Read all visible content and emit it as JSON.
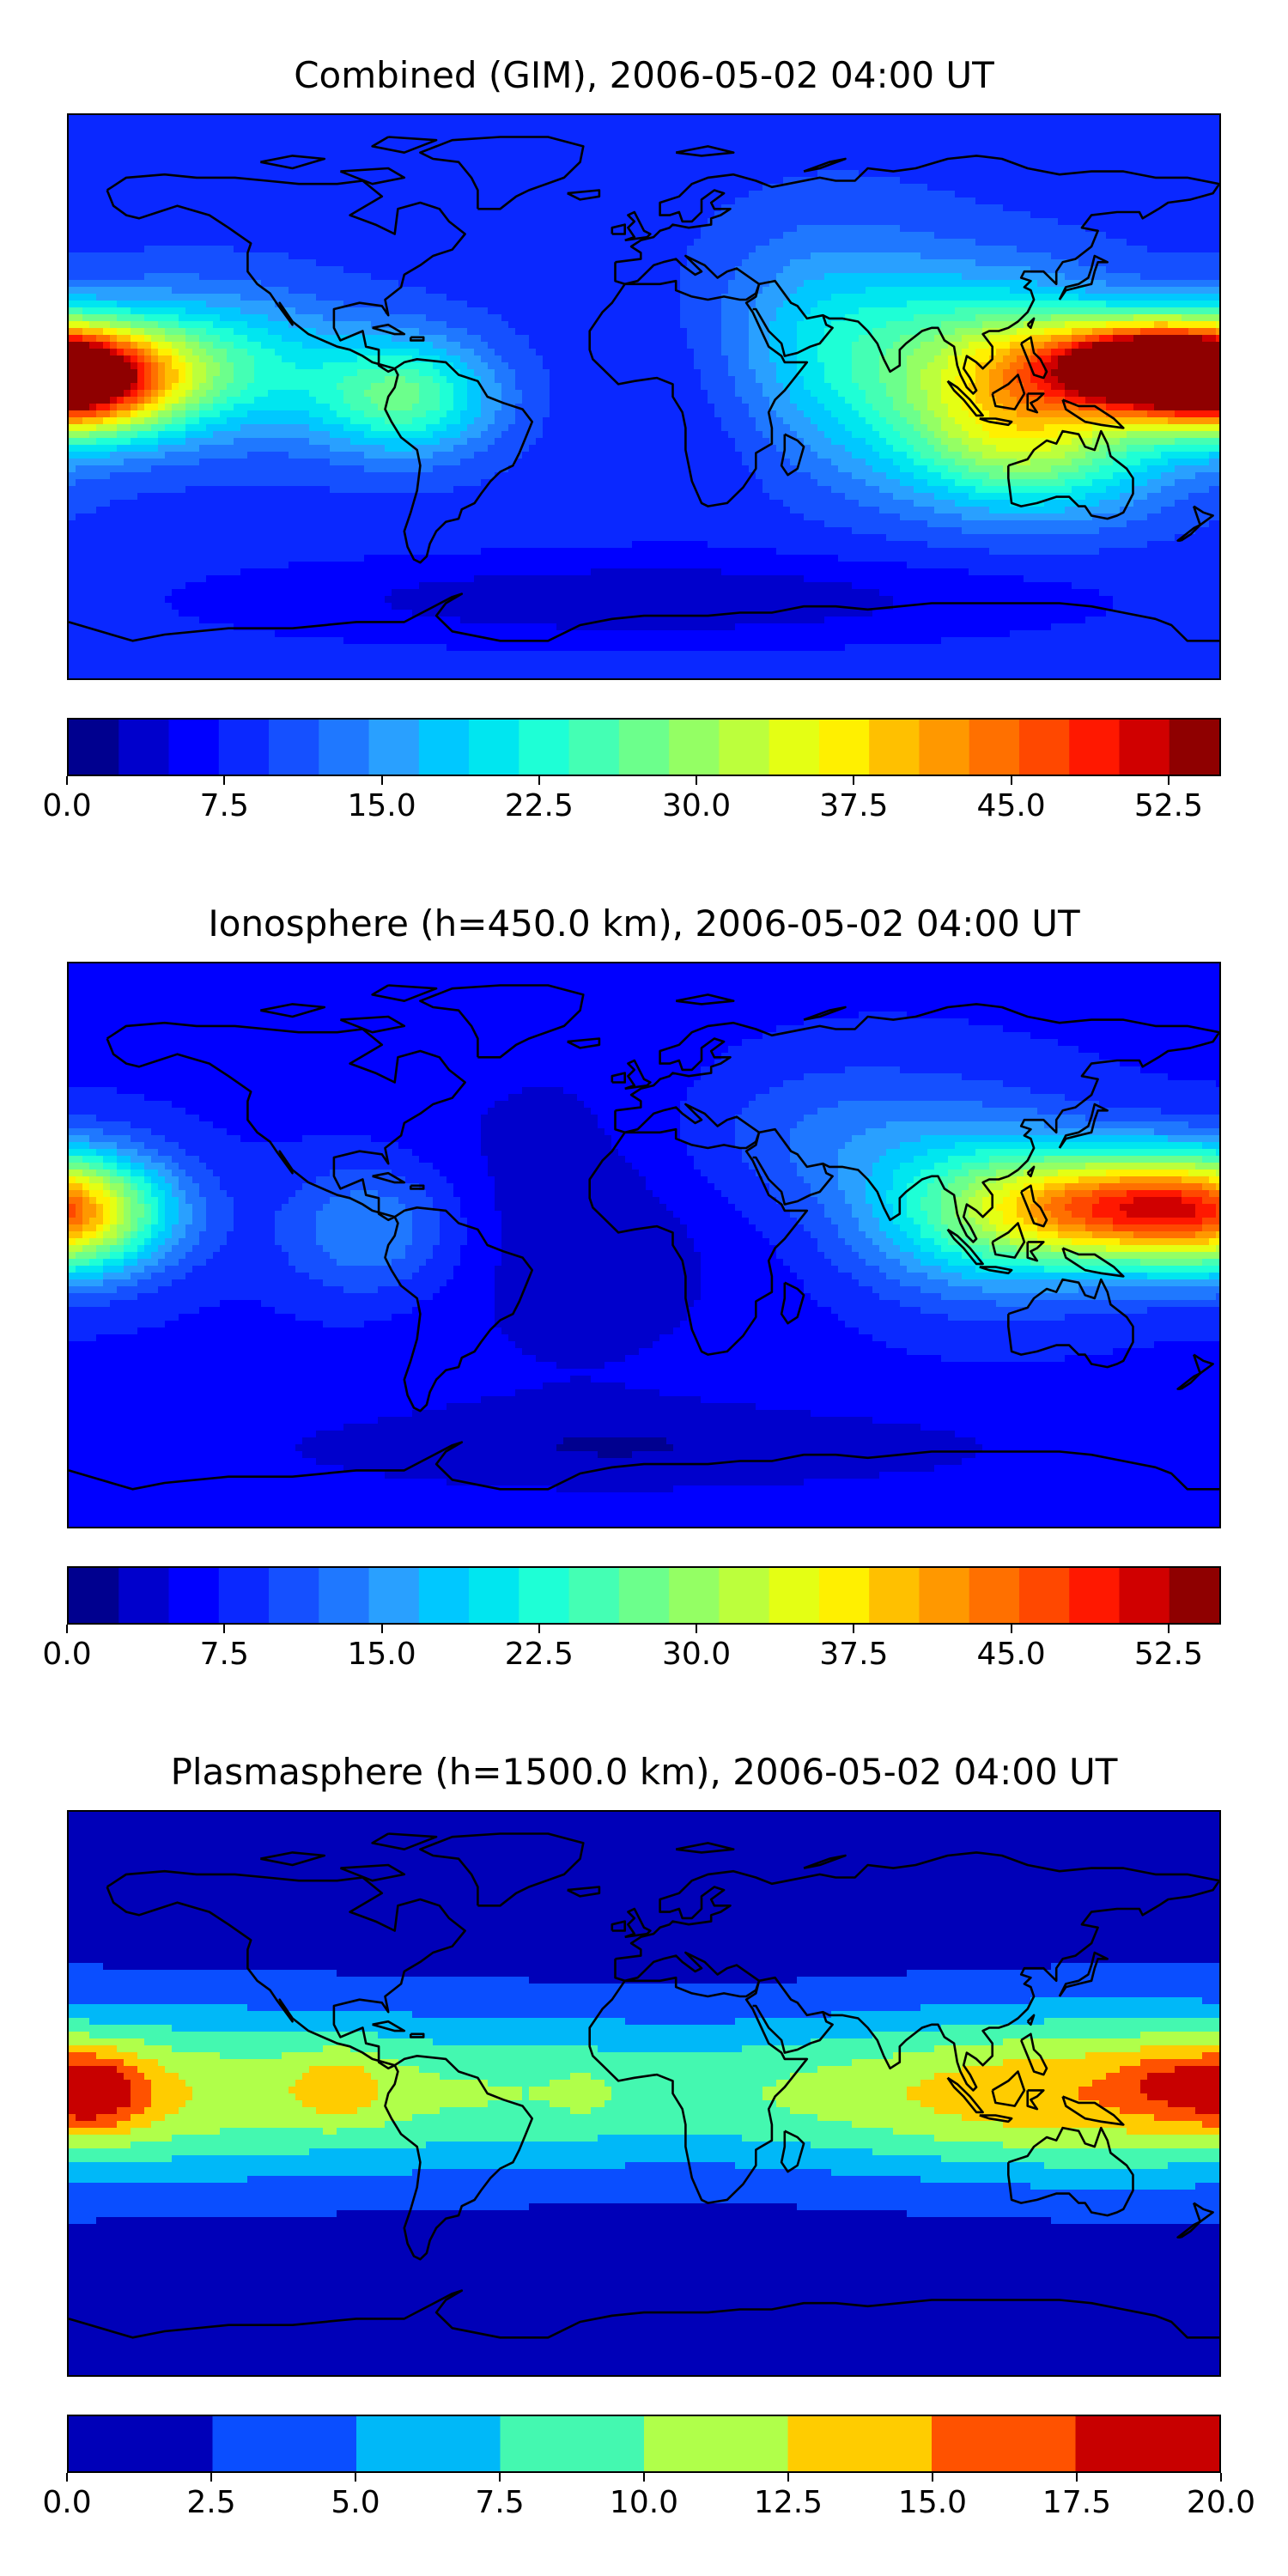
{
  "panels": [
    {
      "title": "Combined (GIM), 2006-05-02 04:00 UT",
      "colorbar": {
        "vmin": 0.0,
        "vmax": 55.0,
        "step": 2.5,
        "tick_labels": [
          "0.0",
          "7.5",
          "15.0",
          "22.5",
          "30.0",
          "37.5",
          "45.0",
          "52.5"
        ],
        "tick_values": [
          0.0,
          7.5,
          15.0,
          22.5,
          30.0,
          37.5,
          45.0,
          52.5
        ],
        "colors": [
          "#00008f",
          "#0000cc",
          "#0000ff",
          "#0a28ff",
          "#1550ff",
          "#1f78ff",
          "#29a0ff",
          "#00c8ff",
          "#00e6f0",
          "#1effd6",
          "#44ffb4",
          "#6cff8c",
          "#94ff64",
          "#bcff3c",
          "#e4ff14",
          "#fff000",
          "#ffc000",
          "#ff9800",
          "#ff7000",
          "#ff4800",
          "#ff1800",
          "#d00000",
          "#8f0000"
        ]
      },
      "field": {
        "base": 9,
        "blobs": [
          {
            "lon": -178,
            "lat": 5,
            "amp": 41,
            "sx": 22,
            "sy": 12
          },
          {
            "lon": 155,
            "lat": 10,
            "amp": 41,
            "sx": 22,
            "sy": 10
          },
          {
            "lon": 115,
            "lat": 5,
            "amp": 26,
            "sx": 26,
            "sy": 20
          },
          {
            "lon": -75,
            "lat": 0,
            "amp": 18,
            "sx": 20,
            "sy": 13
          },
          {
            "lon": 60,
            "lat": 15,
            "amp": 13,
            "sx": 28,
            "sy": 25
          },
          {
            "lon": -140,
            "lat": 10,
            "amp": 16,
            "sx": 32,
            "sy": 16
          },
          {
            "lon": 125,
            "lat": -20,
            "amp": 12,
            "sx": 30,
            "sy": 14
          },
          {
            "lon": 20,
            "lat": 0,
            "amp": -3,
            "sx": 25,
            "sy": 25
          },
          {
            "lon": 0,
            "lat": -65,
            "amp": -6,
            "sx": 90,
            "sy": 10
          }
        ]
      }
    },
    {
      "title": "Ionosphere  (h=450.0 km), 2006-05-02 04:00 UT",
      "colorbar": {
        "vmin": 0.0,
        "vmax": 55.0,
        "step": 2.5,
        "tick_labels": [
          "0.0",
          "7.5",
          "15.0",
          "22.5",
          "30.0",
          "37.5",
          "45.0",
          "52.5"
        ],
        "tick_values": [
          0.0,
          7.5,
          15.0,
          22.5,
          30.0,
          37.5,
          45.0,
          52.5
        ],
        "colors": [
          "#00008f",
          "#0000cc",
          "#0000ff",
          "#0a28ff",
          "#1550ff",
          "#1f78ff",
          "#29a0ff",
          "#00c8ff",
          "#00e6f0",
          "#1effd6",
          "#44ffb4",
          "#6cff8c",
          "#94ff64",
          "#bcff3c",
          "#e4ff14",
          "#fff000",
          "#ffc000",
          "#ff9800",
          "#ff7000",
          "#ff4800",
          "#ff1800",
          "#d00000",
          "#8f0000"
        ]
      },
      "field": {
        "base": 7,
        "blobs": [
          {
            "lon": -178,
            "lat": 10,
            "amp": 24,
            "sx": 22,
            "sy": 14
          },
          {
            "lon": 150,
            "lat": 12,
            "amp": 30,
            "sx": 28,
            "sy": 12
          },
          {
            "lon": 110,
            "lat": 10,
            "amp": 18,
            "sx": 30,
            "sy": 18
          },
          {
            "lon": -85,
            "lat": 5,
            "amp": 9,
            "sx": 20,
            "sy": 15
          },
          {
            "lon": 60,
            "lat": 35,
            "amp": 6,
            "sx": 40,
            "sy": 18
          },
          {
            "lon": -20,
            "lat": 10,
            "amp": -4,
            "sx": 40,
            "sy": 40
          },
          {
            "lon": 0,
            "lat": -65,
            "amp": -4,
            "sx": 90,
            "sy": 10
          }
        ]
      }
    },
    {
      "title": "Plasmasphere (h=1500.0 km), 2006-05-02 04:00 UT",
      "colorbar": {
        "vmin": 0.0,
        "vmax": 20.0,
        "step": 2.5,
        "tick_labels": [
          "0.0",
          "2.5",
          "5.0",
          "7.5",
          "10.0",
          "12.5",
          "15.0",
          "17.5",
          "20.0"
        ],
        "tick_values": [
          0.0,
          2.5,
          5.0,
          7.5,
          10.0,
          12.5,
          15.0,
          17.5,
          20.0
        ],
        "colors": [
          "#0000b8",
          "#0a4eff",
          "#00b8f8",
          "#44f8b0",
          "#b0ff4a",
          "#ffcc00",
          "#ff5200",
          "#c80000"
        ]
      },
      "field": {
        "base": 1.2,
        "blobs": [
          {
            "lon": -160,
            "lat": 0,
            "amp": 7.5,
            "sx": 80,
            "sy": 20
          },
          {
            "lon": 0,
            "lat": 0,
            "amp": 7.0,
            "sx": 90,
            "sy": 18
          },
          {
            "lon": 130,
            "lat": 0,
            "amp": 6.0,
            "sx": 55,
            "sy": 18
          },
          {
            "lon": -173,
            "lat": 1,
            "amp": 8.5,
            "sx": 12,
            "sy": 9
          },
          {
            "lon": -95,
            "lat": 3,
            "amp": 3.5,
            "sx": 11,
            "sy": 9
          },
          {
            "lon": 163,
            "lat": 4,
            "amp": 3.5,
            "sx": 11,
            "sy": 8
          },
          {
            "lon": -20,
            "lat": 0,
            "amp": 1.2,
            "sx": 6,
            "sy": 5
          }
        ]
      }
    }
  ]
}
